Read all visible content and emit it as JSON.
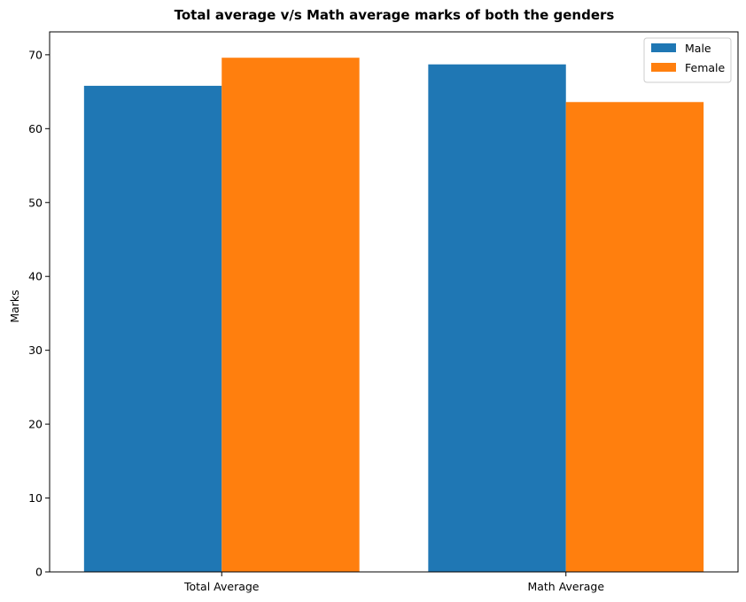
{
  "chart_data": {
    "type": "bar",
    "title": "Total average v/s Math average marks of both the genders",
    "xlabel": "",
    "ylabel": "Marks",
    "categories": [
      "Total Average",
      "Math Average"
    ],
    "series": [
      {
        "name": "Male",
        "values": [
          65.8,
          68.7
        ],
        "color": "#1f77b4"
      },
      {
        "name": "Female",
        "values": [
          69.6,
          63.6
        ],
        "color": "#ff7f0e"
      }
    ],
    "ylim": [
      0,
      73.1
    ],
    "yticks": [
      0,
      10,
      20,
      30,
      40,
      50,
      60,
      70
    ],
    "grid": false,
    "legend_position": "top-right"
  }
}
